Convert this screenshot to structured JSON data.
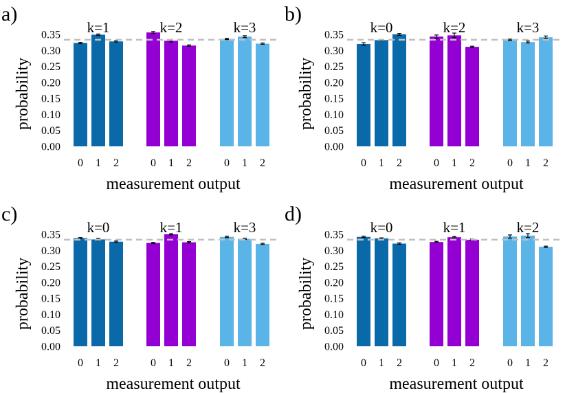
{
  "chart_data": [
    {
      "type": "bar",
      "panel": "a)",
      "groups": [
        "k=1",
        "k=2",
        "k=3"
      ],
      "categories": [
        "0",
        "1",
        "2"
      ],
      "series": [
        {
          "values": [
            0.323,
            0.349,
            0.328
          ],
          "errors": [
            0.002,
            0.002,
            0.002
          ]
        },
        {
          "values": [
            0.356,
            0.33,
            0.315
          ],
          "errors": [
            0.003,
            0.004,
            0.002
          ]
        },
        {
          "values": [
            0.336,
            0.343,
            0.321
          ],
          "errors": [
            0.002,
            0.003,
            0.002
          ]
        }
      ],
      "colors": [
        "#0a6aa9",
        "#9400d3",
        "#5ab4e7"
      ],
      "reference_line": 0.333,
      "xlabel": "measurement output",
      "ylabel": "probability",
      "ylim": [
        0,
        0.38
      ],
      "yticks": [
        "0.00",
        "0.05",
        "0.10",
        "0.15",
        "0.20",
        "0.25",
        "0.30",
        "0.35"
      ]
    },
    {
      "type": "bar",
      "panel": "b)",
      "groups": [
        "k=0",
        "k=2",
        "k=3"
      ],
      "categories": [
        "0",
        "1",
        "2"
      ],
      "series": [
        {
          "values": [
            0.32,
            0.332,
            0.35
          ],
          "errors": [
            0.004,
            0.002,
            0.003
          ]
        },
        {
          "values": [
            0.343,
            0.347,
            0.311
          ],
          "errors": [
            0.005,
            0.007,
            0.002
          ]
        },
        {
          "values": [
            0.333,
            0.326,
            0.341
          ],
          "errors": [
            0.002,
            0.003,
            0.004
          ]
        }
      ],
      "colors": [
        "#0a6aa9",
        "#9400d3",
        "#5ab4e7"
      ],
      "reference_line": 0.333,
      "xlabel": "measurement output",
      "ylabel": "probability",
      "ylim": [
        0,
        0.38
      ],
      "yticks": [
        "0.00",
        "0.05",
        "0.10",
        "0.15",
        "0.20",
        "0.25",
        "0.30",
        "0.35"
      ]
    },
    {
      "type": "bar",
      "panel": "c)",
      "groups": [
        "k=0",
        "k=1",
        "k=3"
      ],
      "categories": [
        "0",
        "1",
        "2"
      ],
      "series": [
        {
          "values": [
            0.338,
            0.334,
            0.327
          ],
          "errors": [
            0.002,
            0.003,
            0.002
          ]
        },
        {
          "values": [
            0.323,
            0.35,
            0.325
          ],
          "errors": [
            0.002,
            0.002,
            0.002
          ]
        },
        {
          "values": [
            0.342,
            0.336,
            0.32
          ],
          "errors": [
            0.002,
            0.002,
            0.002
          ]
        }
      ],
      "colors": [
        "#0a6aa9",
        "#9400d3",
        "#5ab4e7"
      ],
      "reference_line": 0.333,
      "xlabel": "measurement output",
      "ylabel": "probability",
      "ylim": [
        0,
        0.38
      ],
      "yticks": [
        "0.00",
        "0.05",
        "0.10",
        "0.15",
        "0.20",
        "0.25",
        "0.30",
        "0.35"
      ]
    },
    {
      "type": "bar",
      "panel": "d)",
      "groups": [
        "k=0",
        "k=1",
        "k=2"
      ],
      "categories": [
        "0",
        "1",
        "2"
      ],
      "series": [
        {
          "values": [
            0.342,
            0.337,
            0.321
          ],
          "errors": [
            0.002,
            0.002,
            0.002
          ]
        },
        {
          "values": [
            0.326,
            0.341,
            0.333
          ],
          "errors": [
            0.002,
            0.002,
            0.002
          ]
        },
        {
          "values": [
            0.343,
            0.346,
            0.311
          ],
          "errors": [
            0.005,
            0.006,
            0.002
          ]
        }
      ],
      "colors": [
        "#0a6aa9",
        "#9400d3",
        "#5ab4e7"
      ],
      "reference_line": 0.333,
      "xlabel": "measurement output",
      "ylabel": "probability",
      "ylim": [
        0,
        0.38
      ],
      "yticks": [
        "0.00",
        "0.05",
        "0.10",
        "0.15",
        "0.20",
        "0.25",
        "0.30",
        "0.35"
      ]
    }
  ]
}
